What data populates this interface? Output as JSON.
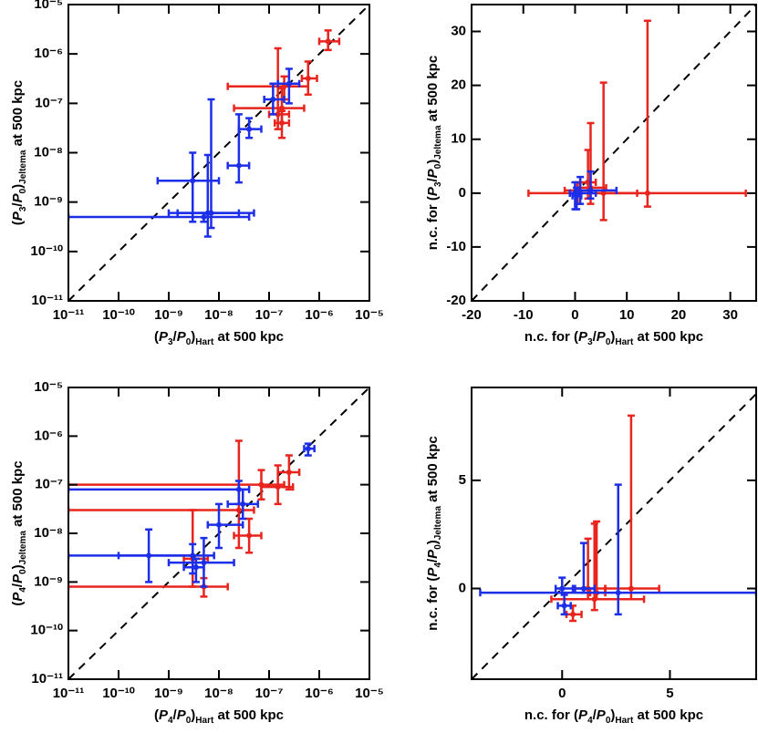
{
  "chart_data": [
    {
      "type": "scatter",
      "log": true,
      "xlim": [
        1e-11,
        1e-05
      ],
      "ylim": [
        1e-11,
        1e-05
      ],
      "xticks": [
        {
          "value": 1e-11,
          "label": "10⁻¹¹"
        },
        {
          "value": 1e-10,
          "label": "10⁻¹⁰"
        },
        {
          "value": 1e-09,
          "label": "10⁻⁹"
        },
        {
          "value": 1e-08,
          "label": "10⁻⁸"
        },
        {
          "value": 1e-07,
          "label": "10⁻⁷"
        },
        {
          "value": 1e-06,
          "label": "10⁻⁶"
        },
        {
          "value": 1e-05,
          "label": "10⁻⁵"
        }
      ],
      "yticks": [
        {
          "value": 1e-11,
          "label": "10⁻¹¹"
        },
        {
          "value": 1e-10,
          "label": "10⁻¹⁰"
        },
        {
          "value": 1e-09,
          "label": "10⁻⁹"
        },
        {
          "value": 1e-08,
          "label": "10⁻⁸"
        },
        {
          "value": 1e-07,
          "label": "10⁻⁷"
        },
        {
          "value": 1e-06,
          "label": "10⁻⁶"
        },
        {
          "value": 1e-05,
          "label": "10⁻⁵"
        }
      ],
      "xlabel": [
        {
          "text": "(",
          "style": "normal"
        },
        {
          "text": "P",
          "style": "italic"
        },
        {
          "text": "3",
          "style": "sub"
        },
        {
          "text": "/",
          "style": "normal"
        },
        {
          "text": "P",
          "style": "italic"
        },
        {
          "text": "0",
          "style": "sub"
        },
        {
          "text": ")",
          "style": "normal"
        },
        {
          "text": "Hart",
          "style": "sub"
        },
        {
          "text": " at 500 kpc",
          "style": "normal"
        }
      ],
      "ylabel": [
        {
          "text": "(",
          "style": "normal"
        },
        {
          "text": "P",
          "style": "italic"
        },
        {
          "text": "3",
          "style": "sub"
        },
        {
          "text": "/",
          "style": "normal"
        },
        {
          "text": "P",
          "style": "italic"
        },
        {
          "text": "0",
          "style": "sub"
        },
        {
          "text": ")",
          "style": "normal"
        },
        {
          "text": "Jeltema",
          "style": "sub"
        },
        {
          "text": " at 500 kpc",
          "style": "normal"
        }
      ],
      "series": [
        {
          "color": "#e8241c",
          "x": [
            1.5e-06,
            6e-07,
            2e-07,
            1.5e-07,
            1.8e-07,
            1.8e-07
          ],
          "values": [
            1.8e-06,
            3.2e-07,
            2.2e-07,
            6e-08,
            8e-08,
            4e-08
          ],
          "x_lower": [
            1e-06,
            4.5e-07,
            1.5e-08,
            1e-07,
            2e-08,
            1.3e-07
          ],
          "x_upper": [
            2.5e-06,
            9e-07,
            6e-07,
            2.5e-07,
            5e-07,
            2.5e-07
          ],
          "y_lower": [
            1.2e-06,
            1.5e-07,
            1.2e-07,
            3e-08,
            4e-08,
            2e-08
          ],
          "y_upper": [
            3e-06,
            7e-07,
            3.5e-07,
            1.3e-06,
            2e-07,
            7e-08
          ]
        },
        {
          "color": "#1c2ee8",
          "x": [
            2.5e-07,
            1.2e-07,
            4e-08,
            2.5e-08,
            7e-09,
            3e-09,
            6e-09,
            5e-09
          ],
          "values": [
            2.5e-07,
            1.2e-07,
            3e-08,
            5.5e-09,
            6e-10,
            2.7e-09,
            6e-10,
            5e-10
          ],
          "x_lower": [
            1.5e-07,
            8e-08,
            2.5e-08,
            1.5e-08,
            1e-09,
            6e-10,
            1.5e-09,
            1e-11
          ],
          "x_upper": [
            4e-07,
            2e-07,
            7e-08,
            4e-08,
            5e-08,
            1e-08,
            2.5e-08,
            4e-08
          ],
          "y_lower": [
            1e-07,
            6e-08,
            2e-08,
            2.5e-09,
            3e-10,
            4e-10,
            2e-10,
            4e-10
          ],
          "y_upper": [
            5e-07,
            2.5e-07,
            5e-08,
            6e-08,
            1.2e-07,
            1e-08,
            9e-09,
            6e-10
          ]
        }
      ]
    },
    {
      "type": "scatter",
      "log": false,
      "xlim": [
        -20,
        35
      ],
      "ylim": [
        -20,
        35
      ],
      "xticks": [
        -20,
        -10,
        0,
        10,
        20,
        30
      ],
      "yticks": [
        -20,
        -10,
        0,
        10,
        20,
        30
      ],
      "xlabel": [
        {
          "text": "n.c. for (",
          "style": "normal"
        },
        {
          "text": "P",
          "style": "italic"
        },
        {
          "text": "3",
          "style": "sub"
        },
        {
          "text": "/",
          "style": "normal"
        },
        {
          "text": "P",
          "style": "italic"
        },
        {
          "text": "0",
          "style": "sub"
        },
        {
          "text": ")",
          "style": "normal"
        },
        {
          "text": "Hart",
          "style": "sub"
        },
        {
          "text": " at 500 kpc",
          "style": "normal"
        }
      ],
      "ylabel": [
        {
          "text": "n.c. for (",
          "style": "normal"
        },
        {
          "text": "P",
          "style": "italic"
        },
        {
          "text": "3",
          "style": "sub"
        },
        {
          "text": "/",
          "style": "normal"
        },
        {
          "text": "P",
          "style": "italic"
        },
        {
          "text": "0",
          "style": "sub"
        },
        {
          "text": ")",
          "style": "normal"
        },
        {
          "text": "Jeltema",
          "style": "sub"
        },
        {
          "text": " at 500 kpc",
          "style": "normal"
        }
      ],
      "series": [
        {
          "color": "#e8241c",
          "x": [
            14,
            5.5,
            3,
            2.5,
            0.5
          ],
          "values": [
            0,
            0,
            1,
            2,
            0.5
          ],
          "x_lower": [
            0,
            -9,
            0,
            1,
            -2
          ],
          "x_upper": [
            33,
            12,
            6,
            4,
            3
          ],
          "y_lower": [
            -2.5,
            -5,
            -2,
            -1,
            -2
          ],
          "y_upper": [
            32,
            20.5,
            13,
            8,
            2
          ]
        },
        {
          "color": "#1c2ee8",
          "x": [
            0,
            1,
            3,
            0.3
          ],
          "values": [
            0,
            0,
            0.5,
            -0.5
          ],
          "x_lower": [
            -1,
            -1,
            0,
            -0.5
          ],
          "x_upper": [
            1,
            4,
            8,
            1.2
          ],
          "y_lower": [
            -3,
            -2,
            -1,
            -3
          ],
          "y_upper": [
            2,
            3,
            4,
            1
          ]
        }
      ]
    },
    {
      "type": "scatter",
      "log": true,
      "xlim": [
        1e-11,
        1e-05
      ],
      "ylim": [
        1e-11,
        1e-05
      ],
      "xticks": [
        {
          "value": 1e-11,
          "label": "10⁻¹¹"
        },
        {
          "value": 1e-10,
          "label": "10⁻¹⁰"
        },
        {
          "value": 1e-09,
          "label": "10⁻⁹"
        },
        {
          "value": 1e-08,
          "label": "10⁻⁸"
        },
        {
          "value": 1e-07,
          "label": "10⁻⁷"
        },
        {
          "value": 1e-06,
          "label": "10⁻⁶"
        },
        {
          "value": 1e-05,
          "label": "10⁻⁵"
        }
      ],
      "yticks": [
        {
          "value": 1e-11,
          "label": "10⁻¹¹"
        },
        {
          "value": 1e-10,
          "label": "10⁻¹⁰"
        },
        {
          "value": 1e-09,
          "label": "10⁻⁹"
        },
        {
          "value": 1e-08,
          "label": "10⁻⁸"
        },
        {
          "value": 1e-07,
          "label": "10⁻⁷"
        },
        {
          "value": 1e-06,
          "label": "10⁻⁶"
        },
        {
          "value": 1e-05,
          "label": "10⁻⁵"
        }
      ],
      "xlabel": [
        {
          "text": "(",
          "style": "normal"
        },
        {
          "text": "P",
          "style": "italic"
        },
        {
          "text": "4",
          "style": "sub"
        },
        {
          "text": "/",
          "style": "normal"
        },
        {
          "text": "P",
          "style": "italic"
        },
        {
          "text": "0",
          "style": "sub"
        },
        {
          "text": ")",
          "style": "normal"
        },
        {
          "text": "Hart",
          "style": "sub"
        },
        {
          "text": " at 500 kpc",
          "style": "normal"
        }
      ],
      "ylabel": [
        {
          "text": "(",
          "style": "normal"
        },
        {
          "text": "P",
          "style": "italic"
        },
        {
          "text": "4",
          "style": "sub"
        },
        {
          "text": "/",
          "style": "normal"
        },
        {
          "text": "P",
          "style": "italic"
        },
        {
          "text": "0",
          "style": "sub"
        },
        {
          "text": ")",
          "style": "normal"
        },
        {
          "text": "Jeltema",
          "style": "sub"
        },
        {
          "text": " at 500 kpc",
          "style": "normal"
        }
      ],
      "series": [
        {
          "color": "#e8241c",
          "x": [
            2.5e-07,
            1.5e-07,
            7e-08,
            4e-08,
            2.5e-08,
            3e-09,
            5e-09
          ],
          "values": [
            1.8e-07,
            9e-08,
            1e-07,
            9e-09,
            3e-08,
            3e-09,
            8e-10
          ],
          "x_lower": [
            1.5e-07,
            7e-08,
            1e-11,
            2e-08,
            1e-11,
            2e-09,
            1e-11
          ],
          "x_upper": [
            4e-07,
            3e-07,
            2e-07,
            7e-08,
            5e-08,
            6e-09,
            1.5e-08
          ],
          "y_lower": [
            8e-08,
            4e-08,
            5e-08,
            4e-09,
            5e-09,
            8e-10,
            5e-10
          ],
          "y_upper": [
            4e-07,
            2.5e-07,
            2e-07,
            2e-08,
            8e-07,
            3e-08,
            1.2e-09
          ]
        },
        {
          "color": "#1c2ee8",
          "x": [
            6e-07,
            3e-08,
            2.5e-08,
            1e-08,
            5e-09,
            4e-10,
            3e-09,
            3.5e-09
          ],
          "values": [
            5.5e-07,
            4e-08,
            8e-08,
            1.5e-08,
            2.5e-09,
            3.5e-09,
            3.5e-09,
            2e-09
          ],
          "x_lower": [
            5e-07,
            1.5e-08,
            1e-11,
            6e-09,
            1e-09,
            1e-10,
            1e-11,
            2e-09
          ],
          "x_upper": [
            8e-07,
            6e-08,
            4e-08,
            3e-08,
            2e-08,
            3e-09,
            8e-09,
            5e-09
          ],
          "y_lower": [
            4e-07,
            2e-08,
            4e-08,
            5e-09,
            8e-10,
            1e-09,
            1.5e-09,
            1e-09
          ],
          "y_upper": [
            7e-07,
            8e-08,
            1.2e-07,
            4e-08,
            8e-09,
            1.2e-08,
            6e-09,
            3e-09
          ]
        }
      ]
    },
    {
      "type": "scatter",
      "log": false,
      "xlim": [
        -4.2,
        9
      ],
      "ylim": [
        -4.2,
        9.3
      ],
      "xticks": [
        0,
        5
      ],
      "yticks": [
        0,
        5
      ],
      "xlabel": [
        {
          "text": "n.c. for (",
          "style": "normal"
        },
        {
          "text": "P",
          "style": "italic"
        },
        {
          "text": "4",
          "style": "sub"
        },
        {
          "text": "/",
          "style": "normal"
        },
        {
          "text": "P",
          "style": "italic"
        },
        {
          "text": "0",
          "style": "sub"
        },
        {
          "text": ")",
          "style": "normal"
        },
        {
          "text": "Hart",
          "style": "sub"
        },
        {
          "text": " at 500 kpc",
          "style": "normal"
        }
      ],
      "ylabel": [
        {
          "text": "n.c. for (",
          "style": "normal"
        },
        {
          "text": "P",
          "style": "italic"
        },
        {
          "text": "4",
          "style": "sub"
        },
        {
          "text": "/",
          "style": "normal"
        },
        {
          "text": "P",
          "style": "italic"
        },
        {
          "text": "0",
          "style": "sub"
        },
        {
          "text": ")",
          "style": "normal"
        },
        {
          "text": "Jeltema",
          "style": "sub"
        },
        {
          "text": " at 500 kpc",
          "style": "normal"
        }
      ],
      "series": [
        {
          "color": "#e8241c",
          "x": [
            3.2,
            1.5,
            1.2,
            0.5,
            1.6
          ],
          "values": [
            0,
            -0.5,
            0,
            -1.2,
            -0.2
          ],
          "x_lower": [
            2,
            -0.5,
            0.5,
            0.2,
            1.3
          ],
          "x_upper": [
            4.5,
            3.8,
            2,
            0.9,
            2
          ],
          "y_lower": [
            -0.5,
            -1,
            -0.5,
            -1.5,
            -0.5
          ],
          "y_upper": [
            8,
            3,
            2.3,
            -0.8,
            3.1
          ]
        },
        {
          "color": "#1c2ee8",
          "x": [
            2.6,
            1,
            0.1,
            0
          ],
          "values": [
            -0.2,
            0,
            -0.8,
            0
          ],
          "x_lower": [
            -3.8,
            0.6,
            -0.2,
            -0.3
          ],
          "x_upper": [
            9,
            1.5,
            0.4,
            0.5
          ],
          "y_lower": [
            -1.2,
            -0.2,
            -1.2,
            -0.2
          ],
          "y_upper": [
            4.8,
            2.1,
            -0.3,
            0.5
          ]
        }
      ]
    }
  ]
}
